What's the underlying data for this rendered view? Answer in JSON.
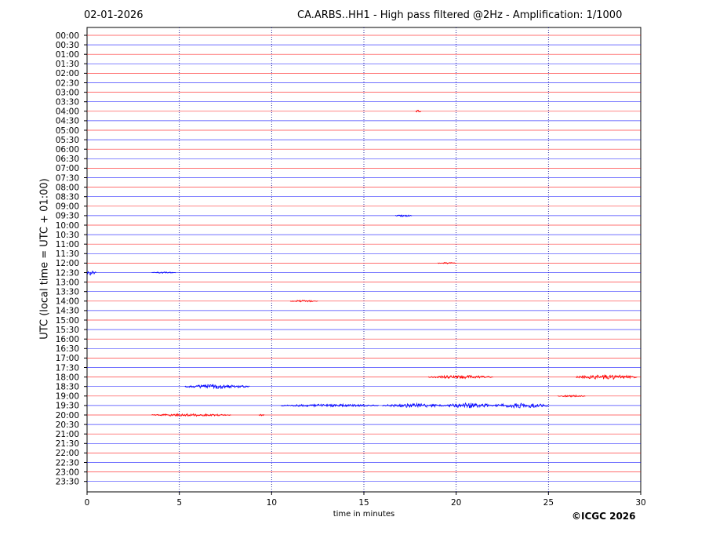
{
  "header": {
    "date": "02-01-2026",
    "title": "CA.ARBS..HH1 - High pass filtered @2Hz - Amplification: 1/1000"
  },
  "footer": {
    "copyright": "©ICGC 2026"
  },
  "chart_data": {
    "type": "line",
    "subtype": "helicorder",
    "xlabel": "time in minutes",
    "ylabel": "UTC (local time = UTC + 01:00)",
    "xlim": [
      0,
      30
    ],
    "x_ticks": [
      0,
      5,
      10,
      15,
      20,
      25,
      30
    ],
    "x_gridlines": [
      5,
      10,
      15,
      20,
      25
    ],
    "grid": "vertical dotted",
    "trace_colors": [
      "#ff0000",
      "#0000ff"
    ],
    "rows": [
      "00:00",
      "00:30",
      "01:00",
      "01:30",
      "02:00",
      "02:30",
      "03:00",
      "03:30",
      "04:00",
      "04:30",
      "05:00",
      "05:30",
      "06:00",
      "06:30",
      "07:00",
      "07:30",
      "08:00",
      "08:30",
      "09:00",
      "09:30",
      "10:00",
      "10:30",
      "11:00",
      "11:30",
      "12:00",
      "12:30",
      "13:00",
      "13:30",
      "14:00",
      "14:30",
      "15:00",
      "15:30",
      "16:00",
      "16:30",
      "17:00",
      "17:30",
      "18:00",
      "18:30",
      "19:00",
      "19:30",
      "20:00",
      "20:30",
      "21:00",
      "21:30",
      "22:00",
      "22:30",
      "23:00",
      "23:30"
    ],
    "events": [
      {
        "row": "04:00",
        "start": 17.8,
        "end": 18.1,
        "amplitude": 1.5
      },
      {
        "row": "09:30",
        "start": 16.7,
        "end": 17.6,
        "amplitude": 1.2
      },
      {
        "row": "12:00",
        "start": 19.0,
        "end": 20.0,
        "amplitude": 1.0
      },
      {
        "row": "12:30",
        "start": 0.0,
        "end": 0.5,
        "amplitude": 3.5
      },
      {
        "row": "12:30",
        "start": 3.5,
        "end": 4.8,
        "amplitude": 0.9
      },
      {
        "row": "14:00",
        "start": 11.0,
        "end": 12.5,
        "amplitude": 1.2
      },
      {
        "row": "18:00",
        "start": 18.5,
        "end": 22.0,
        "amplitude": 2.2
      },
      {
        "row": "18:00",
        "start": 26.5,
        "end": 29.8,
        "amplitude": 3.0
      },
      {
        "row": "18:30",
        "start": 5.3,
        "end": 8.8,
        "amplitude": 2.6
      },
      {
        "row": "19:00",
        "start": 25.5,
        "end": 27.0,
        "amplitude": 1.2
      },
      {
        "row": "19:30",
        "start": 10.5,
        "end": 15.8,
        "amplitude": 1.8
      },
      {
        "row": "19:30",
        "start": 16.0,
        "end": 19.5,
        "amplitude": 2.6
      },
      {
        "row": "19:30",
        "start": 19.5,
        "end": 22.0,
        "amplitude": 3.5
      },
      {
        "row": "19:30",
        "start": 22.0,
        "end": 25.0,
        "amplitude": 3.0
      },
      {
        "row": "20:00",
        "start": 3.5,
        "end": 7.8,
        "amplitude": 1.6
      },
      {
        "row": "20:00",
        "start": 9.3,
        "end": 9.6,
        "amplitude": 1.2
      }
    ]
  }
}
